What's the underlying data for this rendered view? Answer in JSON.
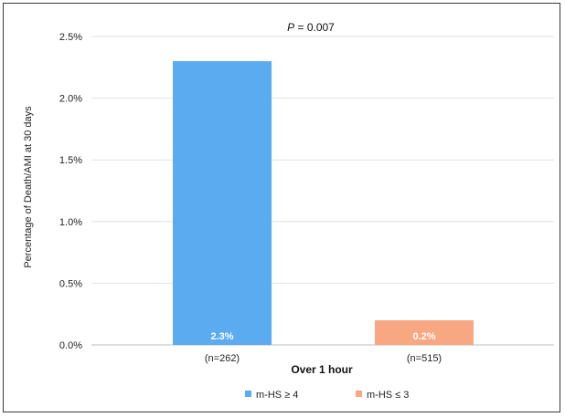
{
  "chart_data": {
    "type": "bar",
    "annotation": {
      "prefix": "P",
      "rest": " = 0.007"
    },
    "ylabel": "Percentage of Death/AMI at 30 days",
    "xlabel": "Over 1 hour",
    "ylim": [
      0,
      2.5
    ],
    "yticks": [
      "0.0%",
      "0.5%",
      "1.0%",
      "1.5%",
      "2.0%",
      "2.5%"
    ],
    "ytick_values": [
      0,
      0.5,
      1.0,
      1.5,
      2.0,
      2.5
    ],
    "grid": true,
    "legend_position": "bottom",
    "series": [
      {
        "name": "m-HS ≥ 4",
        "value": 2.3,
        "data_label": "2.3%",
        "n_label": "(n=262)",
        "color": "#5aabef"
      },
      {
        "name": "m-HS ≤ 3",
        "value": 0.2,
        "data_label": "0.2%",
        "n_label": "(n=515)",
        "color": "#f7a883"
      }
    ]
  }
}
